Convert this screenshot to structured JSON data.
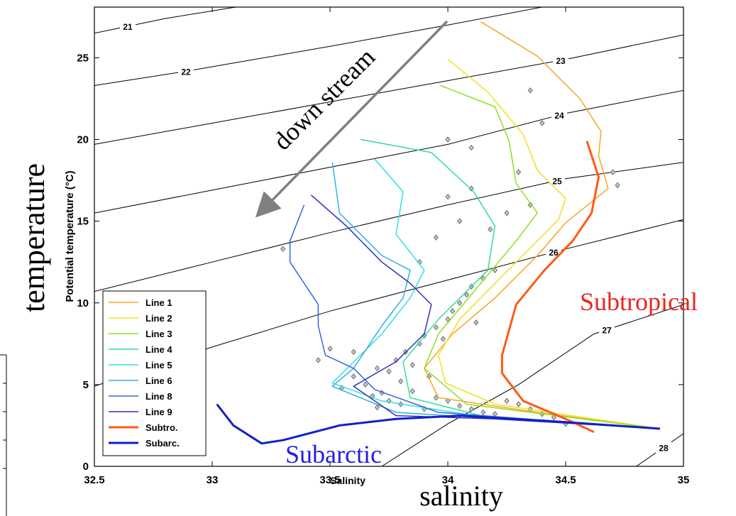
{
  "chart_data": {
    "type": "line",
    "xlabel": "Salinity",
    "ylabel": "Potential temperature (°C)",
    "xlim": [
      32.5,
      35
    ],
    "ylim": [
      0,
      28.1
    ],
    "xticks": [
      32.5,
      33,
      33.5,
      34,
      34.5,
      35
    ],
    "yticks": [
      0,
      5,
      10,
      15,
      20,
      25
    ],
    "legend": "lower left",
    "series": [
      {
        "name": "Line 1",
        "color": "#f5a623",
        "width": 1.5,
        "x": [
          34.14,
          34.38,
          34.56,
          34.65,
          34.64,
          34.68,
          34.5,
          34.38,
          34.2,
          34.02,
          33.9,
          33.96,
          34.38,
          34.9
        ],
        "values": [
          27.2,
          25.1,
          22.5,
          20.5,
          19.0,
          17.0,
          14.9,
          12.9,
          10.3,
          8.1,
          6.0,
          4.2,
          3.3,
          2.3
        ]
      },
      {
        "name": "Line 2",
        "color": "#f0e020",
        "width": 1.5,
        "x": [
          34.0,
          34.17,
          34.32,
          34.38,
          34.5,
          34.47,
          34.29,
          34.05,
          33.96,
          33.99,
          34.2,
          34.9
        ],
        "values": [
          24.9,
          22.9,
          20.3,
          18.1,
          16.4,
          15.1,
          12.5,
          9.0,
          6.8,
          5.1,
          3.8,
          2.3
        ]
      },
      {
        "name": "Line 3",
        "color": "#8ee020",
        "width": 1.5,
        "x": [
          33.97,
          34.2,
          34.26,
          34.29,
          34.38,
          34.29,
          34.14,
          33.96,
          33.9,
          34.08,
          34.9
        ],
        "values": [
          23.3,
          22.0,
          19.9,
          17.3,
          15.5,
          13.8,
          11.2,
          8.1,
          6.0,
          3.8,
          2.3
        ]
      },
      {
        "name": "Line 4",
        "color": "#30e090",
        "width": 1.5,
        "x": [
          33.63,
          33.93,
          34.11,
          34.2,
          34.17,
          33.96,
          33.81,
          33.84,
          34.14,
          34.9
        ],
        "values": [
          20.0,
          19.2,
          16.8,
          14.7,
          12.0,
          9.0,
          6.4,
          4.2,
          3.1,
          2.3
        ]
      },
      {
        "name": "Line 5",
        "color": "#30e0e0",
        "width": 1.5,
        "x": [
          33.69,
          33.81,
          33.78,
          33.9,
          33.84,
          33.72,
          33.51,
          33.72,
          34.2,
          34.9
        ],
        "values": [
          18.8,
          16.8,
          14.2,
          12.0,
          10.3,
          8.1,
          5.1,
          4.0,
          2.9,
          2.3
        ]
      },
      {
        "name": "Line 6",
        "color": "#30b0e8",
        "width": 1.5,
        "x": [
          33.51,
          33.54,
          33.72,
          33.84,
          33.81,
          33.72,
          33.6,
          33.51,
          33.78,
          34.9
        ],
        "values": [
          18.6,
          15.5,
          12.9,
          12.0,
          10.3,
          8.6,
          6.0,
          4.9,
          3.3,
          2.3
        ]
      },
      {
        "name": "Line 8",
        "color": "#3068e0",
        "width": 1.5,
        "x": [
          33.39,
          33.33,
          33.33,
          33.39,
          33.45,
          33.45,
          33.48,
          33.6,
          33.69,
          33.96,
          34.9
        ],
        "values": [
          16.0,
          13.8,
          12.5,
          11.2,
          9.9,
          8.6,
          6.8,
          6.0,
          4.7,
          3.3,
          2.3
        ]
      },
      {
        "name": "Line 9",
        "color": "#3030c0",
        "width": 1.5,
        "x": [
          33.42,
          33.57,
          33.72,
          33.84,
          33.93,
          33.9,
          33.78,
          33.6,
          33.78,
          34.2,
          34.9
        ],
        "values": [
          16.6,
          14.7,
          12.5,
          11.2,
          9.9,
          8.1,
          6.4,
          4.9,
          3.1,
          2.9,
          2.3
        ]
      },
      {
        "name": "Subtro.",
        "color": "#ff5a14",
        "width": 3,
        "x": [
          34.59,
          34.64,
          34.61,
          34.53,
          34.41,
          34.29,
          34.23,
          34.23,
          34.32,
          34.5,
          34.62
        ],
        "values": [
          19.9,
          17.7,
          15.5,
          13.8,
          12.0,
          9.9,
          6.8,
          5.7,
          4.0,
          2.9,
          2.1
        ]
      },
      {
        "name": "Subarc.",
        "color": "#1020c8",
        "width": 3,
        "x": [
          33.02,
          33.09,
          33.21,
          33.3,
          33.54,
          33.78,
          34.05,
          34.5,
          34.9
        ],
        "values": [
          3.8,
          2.5,
          1.4,
          1.6,
          2.5,
          2.9,
          3.1,
          2.7,
          2.3
        ]
      }
    ],
    "contours": [
      {
        "level": 21,
        "x": [
          32.5,
          32.8,
          33.1
        ],
        "values": [
          26.5,
          27.4,
          28.1
        ]
      },
      {
        "level": 22,
        "x": [
          32.5,
          32.9,
          33.5,
          34.0,
          34.4
        ],
        "values": [
          23.3,
          24.2,
          25.7,
          27.0,
          28.1
        ]
      },
      {
        "level": 23,
        "x": [
          32.5,
          33.0,
          33.5,
          34.0,
          34.5,
          35
        ],
        "values": [
          19.7,
          21.0,
          22.3,
          23.6,
          24.9,
          26.4
        ]
      },
      {
        "level": 24,
        "x": [
          32.5,
          33.0,
          33.5,
          34.0,
          34.5,
          35
        ],
        "values": [
          15.5,
          16.9,
          18.3,
          19.7,
          21.6,
          23.0
        ]
      },
      {
        "level": 25,
        "x": [
          32.5,
          33.0,
          33.5,
          34.0,
          34.5,
          35
        ],
        "values": [
          10.7,
          12.5,
          14.3,
          16.0,
          17.6,
          18.6
        ]
      },
      {
        "level": 26,
        "x": [
          32.5,
          33.0,
          33.5,
          34.0,
          34.5,
          35
        ],
        "values": [
          4.9,
          7.3,
          9.5,
          11.4,
          13.3,
          15.1
        ]
      },
      {
        "level": 27,
        "x": [
          33.72,
          34.0,
          34.3,
          34.62,
          35
        ],
        "values": [
          0,
          2.6,
          5.0,
          8.1,
          9.9
        ]
      },
      {
        "level": 28,
        "x": [
          34.8,
          35
        ],
        "values": [
          0,
          2.0
        ]
      }
    ],
    "scatter": {
      "color": "#707070",
      "x": [
        33.6,
        33.65,
        33.7,
        33.72,
        33.75,
        33.78,
        33.8,
        33.82,
        33.85,
        33.88,
        33.9,
        33.92,
        33.95,
        33.98,
        34.0,
        34.02,
        34.05,
        34.08,
        34.1,
        34.12,
        34.15,
        34.2,
        34.25,
        34.3,
        34.35,
        34.4,
        34.45,
        34.5,
        33.55,
        33.6,
        33.68,
        33.7,
        33.75,
        33.8,
        33.85,
        33.9,
        33.95,
        34.0,
        34.05,
        34.1,
        34.15,
        34.2,
        33.95,
        34.0,
        34.05,
        34.1,
        34.18,
        34.25,
        34.3,
        34.35,
        33.45,
        33.5,
        33.3,
        34.7,
        34.72,
        34.4,
        34.1,
        34.35,
        33.88,
        34.0
      ],
      "values": [
        5.5,
        5.0,
        6.0,
        4.5,
        5.8,
        6.5,
        5.2,
        7.0,
        6.2,
        7.5,
        8.0,
        5.5,
        8.5,
        7.8,
        9.0,
        9.5,
        10.0,
        10.5,
        11.0,
        8.8,
        11.5,
        12.0,
        4.0,
        3.8,
        3.5,
        3.2,
        3.0,
        2.6,
        4.8,
        7.0,
        4.3,
        3.6,
        4.0,
        3.8,
        4.6,
        3.5,
        4.2,
        4.0,
        3.7,
        3.5,
        3.3,
        3.2,
        14.0,
        16.5,
        15.0,
        17.0,
        14.5,
        15.5,
        18.0,
        16.0,
        6.5,
        7.2,
        13.3,
        18.0,
        17.2,
        21.0,
        19.5,
        23.0,
        12.5,
        20.0
      ]
    },
    "annotations": [
      "down stream",
      "Subtropical",
      "Subarctic",
      "temperature",
      "salinity"
    ]
  }
}
